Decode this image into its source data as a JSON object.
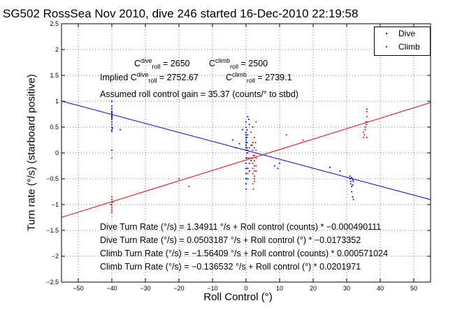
{
  "title": "SG502 RossSea Nov 2010, dive 246 started 16-Dec-2010 22:19:58",
  "colors": {
    "dive": "#0000ff",
    "climb": "#ff0000",
    "axes": "#000000",
    "grid": "#000000"
  },
  "annotations": {
    "c_roll_dive": {
      "base": "C",
      "sup": "dive",
      "sub": "roll",
      "value": " = 2650"
    },
    "c_roll_climb": {
      "base": "C",
      "sup": "climb",
      "sub": "roll",
      "value": " = 2500"
    },
    "implied_prefix": "Implied ",
    "implied_dive": {
      "base": "C",
      "sup": "dive",
      "sub": "roll",
      "value": " = 2752.67"
    },
    "implied_climb": {
      "base": "C",
      "sup": "climb",
      "sub": "roll",
      "value": " = 2739.1"
    },
    "gain": "Assumed roll control gain = 35.37 (counts/° to stbd)",
    "eq1": "Dive Turn Rate (°/s) = 1.34911 °/s + Roll control (counts) * −0.000490111",
    "eq2": "Dive Turn Rate (°/s) = 0.0503187 °/s + Roll control (°) * −0.0173352",
    "eq3": "Climb Turn Rate (°/s) = −1.56409 °/s + Roll control (counts) * 0.000571024",
    "eq4": "Climb Turn Rate (°/s) = −0.136532 °/s + Roll control (°) * 0.0201971"
  },
  "chart_data": {
    "type": "scatter",
    "title": "SG502 RossSea Nov 2010, dive 246 started 16-Dec-2010 22:19:58",
    "xlabel": "Roll Control (°)",
    "ylabel": "Turn rate (°/s) (starboard positive)",
    "xlim": [
      -55,
      55
    ],
    "ylim": [
      -2.5,
      2.5
    ],
    "xticks": [
      -50,
      -40,
      -30,
      -20,
      -10,
      0,
      10,
      20,
      30,
      40,
      50
    ],
    "yticks": [
      -2.5,
      -2,
      -1.5,
      -1,
      -0.5,
      0,
      0.5,
      1,
      1.5,
      2,
      2.5
    ],
    "grid": true,
    "legend": {
      "position": "top-right",
      "entries": [
        "Dive",
        "Climb"
      ]
    },
    "series": [
      {
        "name": "Dive",
        "color": "#0000ff",
        "points": [
          [
            -40,
            1.0
          ],
          [
            -40,
            0.9
          ],
          [
            -40,
            0.85
          ],
          [
            -40,
            0.8
          ],
          [
            -40,
            0.78
          ],
          [
            -40,
            0.75
          ],
          [
            -40,
            0.72
          ],
          [
            -40,
            0.7
          ],
          [
            -40,
            0.68
          ],
          [
            -40,
            0.65
          ],
          [
            -40,
            0.6
          ],
          [
            -40,
            0.55
          ],
          [
            -40,
            0.5
          ],
          [
            -39.8,
            0.48
          ],
          [
            -40,
            0.45
          ],
          [
            -40,
            0.42
          ],
          [
            -37.5,
            0.45
          ],
          [
            -40,
            0.05
          ],
          [
            -4,
            0.25
          ],
          [
            -3,
            0.1
          ],
          [
            -2,
            0.18
          ],
          [
            -1,
            0.45
          ],
          [
            0,
            0.6
          ],
          [
            0,
            0.5
          ],
          [
            0,
            0.4
          ],
          [
            0,
            0.35
          ],
          [
            0,
            0.3
          ],
          [
            0,
            0.25
          ],
          [
            0,
            0.2
          ],
          [
            0,
            0.15
          ],
          [
            0,
            0.1
          ],
          [
            0,
            0.05
          ],
          [
            0.3,
            0.45
          ],
          [
            0.3,
            0.3
          ],
          [
            0.3,
            0.2
          ],
          [
            0.3,
            0.1
          ],
          [
            0.3,
            0.0
          ],
          [
            0.3,
            -0.1
          ],
          [
            0.5,
            0.35
          ],
          [
            0.5,
            0.05
          ],
          [
            0,
            -0.1
          ],
          [
            0,
            -0.2
          ],
          [
            0,
            -0.3
          ],
          [
            0,
            -0.4
          ],
          [
            0,
            -0.5
          ],
          [
            0,
            -0.6
          ],
          [
            0,
            -0.7
          ],
          [
            0.5,
            -0.3
          ],
          [
            0.5,
            -0.5
          ],
          [
            1,
            -0.2
          ],
          [
            1,
            -0.35
          ],
          [
            1.5,
            -0.15
          ],
          [
            2,
            -0.1
          ],
          [
            1,
            0.55
          ],
          [
            0.8,
            0.65
          ],
          [
            0.5,
            0.7
          ],
          [
            9.5,
            -0.3
          ],
          [
            8.5,
            -0.25
          ],
          [
            10,
            -0.2
          ],
          [
            25,
            -0.28
          ],
          [
            28,
            -0.35
          ],
          [
            31,
            -0.45
          ],
          [
            31,
            -0.5
          ],
          [
            31.2,
            -0.55
          ],
          [
            31.2,
            -0.6
          ],
          [
            31.5,
            -0.48
          ],
          [
            31.5,
            -0.65
          ],
          [
            31.5,
            -0.75
          ],
          [
            31.8,
            -0.52
          ],
          [
            31.8,
            -0.62
          ],
          [
            31.8,
            -0.85
          ],
          [
            32,
            -0.55
          ],
          [
            32,
            -0.9
          ]
        ]
      },
      {
        "name": "Climb",
        "color": "#ff0000",
        "points": [
          [
            -40,
            -0.85
          ],
          [
            -40,
            -0.9
          ],
          [
            -40,
            -0.95
          ],
          [
            -40,
            -1.0
          ],
          [
            -40,
            -1.05
          ],
          [
            -40,
            -1.1
          ],
          [
            -40,
            -1.15
          ],
          [
            -39.7,
            -0.95
          ],
          [
            -40.3,
            -1.0
          ],
          [
            -40,
            -0.1
          ],
          [
            -17,
            -0.65
          ],
          [
            -20,
            -0.5
          ],
          [
            0.5,
            0.0
          ],
          [
            0.8,
            -0.1
          ],
          [
            1,
            0.1
          ],
          [
            1,
            -0.2
          ],
          [
            1.5,
            0.15
          ],
          [
            1.5,
            -0.1
          ],
          [
            2,
            0.2
          ],
          [
            2,
            0.05
          ],
          [
            2,
            -0.1
          ],
          [
            2,
            -0.2
          ],
          [
            2,
            -0.3
          ],
          [
            2,
            -0.4
          ],
          [
            2.5,
            0.3
          ],
          [
            2.5,
            0.1
          ],
          [
            2.5,
            -0.05
          ],
          [
            2.5,
            -0.15
          ],
          [
            2.5,
            -0.25
          ],
          [
            2.5,
            -0.35
          ],
          [
            2.5,
            -0.45
          ],
          [
            2.5,
            -0.5
          ],
          [
            3,
            0.05
          ],
          [
            3,
            -0.1
          ],
          [
            3,
            -0.25
          ],
          [
            3,
            -0.35
          ],
          [
            1.8,
            0.15
          ],
          [
            2.2,
            -0.05
          ],
          [
            2.8,
            0.2
          ],
          [
            1.5,
            0.4
          ],
          [
            3,
            0.6
          ],
          [
            2,
            0.5
          ],
          [
            2.5,
            -0.55
          ],
          [
            0.5,
            -0.4
          ],
          [
            2,
            -0.6
          ],
          [
            2.2,
            -0.7
          ],
          [
            12,
            0.35
          ],
          [
            17,
            0.25
          ],
          [
            35,
            0.3
          ],
          [
            35,
            0.4
          ],
          [
            35.5,
            0.45
          ],
          [
            35.5,
            0.5
          ],
          [
            35.8,
            0.55
          ],
          [
            35.8,
            0.6
          ],
          [
            36,
            0.6
          ],
          [
            36,
            0.7
          ],
          [
            36,
            0.8
          ],
          [
            36,
            0.85
          ],
          [
            36,
            0.3
          ],
          [
            35.3,
            0.35
          ]
        ]
      }
    ],
    "fit_lines": [
      {
        "name": "Dive",
        "intercept": 0.0503187,
        "slope": -0.0173352
      },
      {
        "name": "Climb",
        "intercept": -0.136532,
        "slope": 0.0201971
      }
    ]
  }
}
